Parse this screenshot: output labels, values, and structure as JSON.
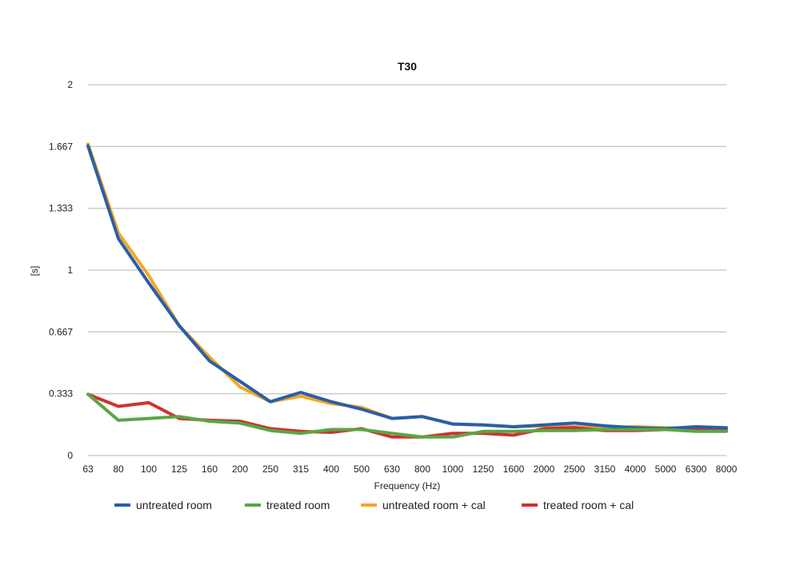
{
  "chart_data": {
    "type": "line",
    "title": "T30",
    "xlabel": "Frequency (Hz)",
    "ylabel": "[s]",
    "ylim": [
      0,
      2
    ],
    "y_ticks": [
      "0",
      "0.333",
      "0.667",
      "1",
      "1.333",
      "1.667",
      "2"
    ],
    "y_tick_values": [
      0,
      0.333,
      0.667,
      1,
      1.333,
      1.667,
      2
    ],
    "grid": true,
    "legend_position": "bottom",
    "categories": [
      "63",
      "80",
      "100",
      "125",
      "160",
      "200",
      "250",
      "315",
      "400",
      "500",
      "630",
      "800",
      "1000",
      "1250",
      "1600",
      "2000",
      "2500",
      "3150",
      "4000",
      "5000",
      "6300",
      "8000"
    ],
    "series": [
      {
        "name": "untreated room + cal",
        "color": "#f5a623",
        "values": [
          1.68,
          1.2,
          0.97,
          0.7,
          0.53,
          0.37,
          0.29,
          0.32,
          0.28,
          0.26,
          0.2,
          0.21,
          0.17,
          0.165,
          0.155,
          0.16,
          0.155,
          0.15,
          0.155,
          0.15,
          0.145,
          0.14
        ]
      },
      {
        "name": "treated room + cal",
        "color": "#d0312d",
        "values": [
          0.33,
          0.265,
          0.285,
          0.2,
          0.19,
          0.185,
          0.145,
          0.13,
          0.125,
          0.145,
          0.1,
          0.1,
          0.12,
          0.12,
          0.11,
          0.145,
          0.15,
          0.135,
          0.135,
          0.14,
          0.14,
          0.135
        ]
      },
      {
        "name": "untreated room",
        "color": "#2a5ea8",
        "values": [
          1.67,
          1.17,
          0.93,
          0.7,
          0.51,
          0.4,
          0.29,
          0.34,
          0.29,
          0.25,
          0.2,
          0.21,
          0.17,
          0.165,
          0.155,
          0.165,
          0.175,
          0.16,
          0.15,
          0.145,
          0.155,
          0.15
        ]
      },
      {
        "name": "treated room",
        "color": "#5aa646",
        "values": [
          0.33,
          0.19,
          0.2,
          0.21,
          0.185,
          0.175,
          0.135,
          0.12,
          0.14,
          0.14,
          0.12,
          0.1,
          0.1,
          0.13,
          0.13,
          0.135,
          0.135,
          0.14,
          0.14,
          0.14,
          0.13,
          0.13
        ]
      }
    ],
    "legend_order": [
      "untreated room",
      "treated room",
      "untreated room + cal",
      "treated room + cal"
    ]
  }
}
